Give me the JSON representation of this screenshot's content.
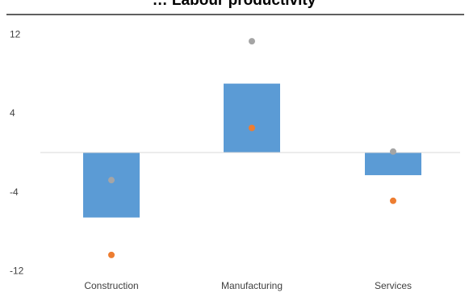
{
  "chart_data": {
    "type": "bar",
    "title": "… Labour productivity",
    "xlabel": "",
    "ylabel": "",
    "categories": [
      "Construction",
      "Manufacturing",
      "Services"
    ],
    "ylim": [
      -12,
      14
    ],
    "y_ticks": [
      12,
      4,
      -4,
      -12
    ],
    "grid": false,
    "legend": "none",
    "series": [
      {
        "type": "bar",
        "color": "#5b9bd5",
        "values": [
          -6.6,
          7.0,
          -2.3
        ]
      },
      {
        "type": "scatter",
        "color": "#a5a5a5",
        "values": [
          -2.8,
          11.3,
          0.1
        ]
      },
      {
        "type": "scatter",
        "color": "#ed7d31",
        "values": [
          -10.4,
          2.5,
          -4.9
        ]
      }
    ]
  }
}
